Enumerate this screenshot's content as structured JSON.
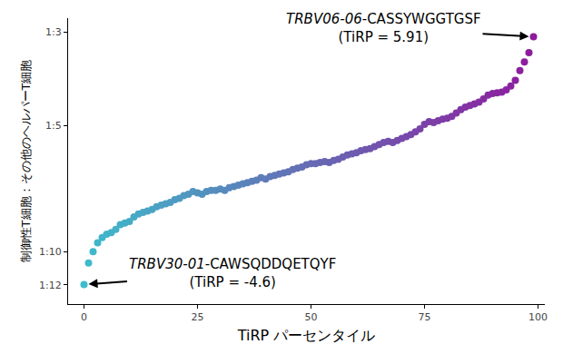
{
  "chart_data": {
    "type": "scatter",
    "xlabel": "TiRP パーセンタイル",
    "ylabel": "制御性T細胞：その他のヘルパーT細胞",
    "log": "y",
    "grid": false,
    "color": [
      "#3dbccb",
      "#8e1b9d"
    ],
    "marker": "circle",
    "x": [
      0,
      1,
      2,
      3,
      4,
      5,
      6,
      7,
      8,
      9,
      10,
      11,
      12,
      13,
      14,
      15,
      16,
      17,
      18,
      19,
      20,
      21,
      22,
      23,
      24,
      25,
      26,
      27,
      28,
      29,
      30,
      31,
      32,
      33,
      34,
      35,
      36,
      37,
      38,
      39,
      40,
      41,
      42,
      43,
      44,
      45,
      46,
      47,
      48,
      49,
      50,
      51,
      52,
      53,
      54,
      55,
      56,
      57,
      58,
      59,
      60,
      61,
      62,
      63,
      64,
      65,
      66,
      67,
      68,
      69,
      70,
      71,
      72,
      73,
      74,
      75,
      76,
      77,
      78,
      79,
      80,
      81,
      82,
      83,
      84,
      85,
      86,
      87,
      88,
      89,
      90,
      91,
      92,
      93,
      94,
      95,
      96,
      97,
      98,
      99
    ],
    "values": [
      0.0835,
      0.094,
      0.1,
      0.105,
      0.108,
      0.11,
      0.111,
      0.113,
      0.116,
      0.117,
      0.118,
      0.121,
      0.123,
      0.124,
      0.125,
      0.126,
      0.128,
      0.129,
      0.13,
      0.131,
      0.133,
      0.134,
      0.136,
      0.137,
      0.139,
      0.138,
      0.137,
      0.139,
      0.14,
      0.14,
      0.141,
      0.14,
      0.142,
      0.143,
      0.144,
      0.145,
      0.146,
      0.147,
      0.148,
      0.15,
      0.149,
      0.151,
      0.152,
      0.153,
      0.154,
      0.155,
      0.157,
      0.158,
      0.159,
      0.161,
      0.162,
      0.162,
      0.163,
      0.164,
      0.163,
      0.165,
      0.166,
      0.168,
      0.17,
      0.171,
      0.172,
      0.174,
      0.175,
      0.176,
      0.178,
      0.18,
      0.182,
      0.183,
      0.182,
      0.184,
      0.186,
      0.188,
      0.19,
      0.193,
      0.196,
      0.201,
      0.204,
      0.203,
      0.205,
      0.207,
      0.208,
      0.21,
      0.214,
      0.218,
      0.221,
      0.223,
      0.225,
      0.227,
      0.231,
      0.236,
      0.238,
      0.239,
      0.24,
      0.243,
      0.248,
      0.256,
      0.27,
      0.283,
      0.298,
      0.325
    ],
    "xlim": [
      -3.5,
      101.5
    ],
    "xticks": [
      0,
      25,
      50,
      75,
      100
    ],
    "ylim": [
      0.075,
      0.36
    ],
    "yticks": [
      {
        "value": 0.3333,
        "label": "1:3"
      },
      {
        "value": 0.2,
        "label": "1:5"
      },
      {
        "value": 0.1,
        "label": "1:10"
      },
      {
        "value": 0.08333,
        "label": "1:12"
      }
    ],
    "annotations": [
      {
        "x": 99,
        "y": 0.325,
        "italic": "TRBV06-06",
        "text": "-CASSYWGGTGSF",
        "note": "(TiRP = 5.91)"
      },
      {
        "x": 0,
        "y": 0.0835,
        "italic": "TRBV30-01",
        "text": "-CAWSQDDQETQYF",
        "note": "(TiRP = -4.6)"
      }
    ]
  }
}
